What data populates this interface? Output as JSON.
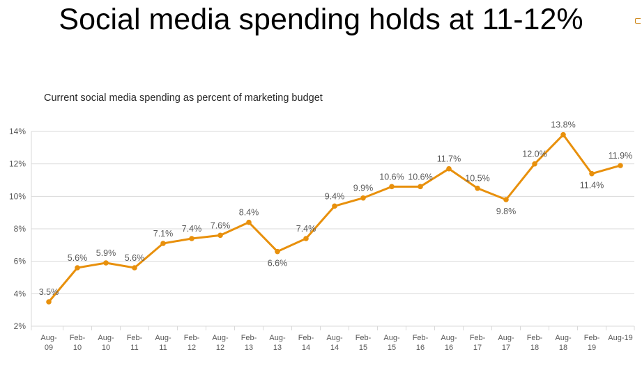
{
  "title": "Social media spending holds at 11-12%",
  "chart_data": {
    "type": "line",
    "title": "Social media spending holds at 11-12%",
    "subtitle": "Current social media spending as percent of marketing budget",
    "xlabel": "",
    "ylabel": "",
    "categories": [
      [
        "Aug-",
        "09"
      ],
      [
        "Feb-",
        "10"
      ],
      [
        "Aug-",
        "10"
      ],
      [
        "Feb-",
        "11"
      ],
      [
        "Aug-",
        "11"
      ],
      [
        "Feb-",
        "12"
      ],
      [
        "Aug-",
        "12"
      ],
      [
        "Feb-",
        "13"
      ],
      [
        "Aug-",
        "13"
      ],
      [
        "Feb-",
        "14"
      ],
      [
        "Aug-",
        "14"
      ],
      [
        "Feb-",
        "15"
      ],
      [
        "Aug-",
        "15"
      ],
      [
        "Feb-",
        "16"
      ],
      [
        "Aug-",
        "16"
      ],
      [
        "Feb-",
        "17"
      ],
      [
        "Aug-",
        "17"
      ],
      [
        "Feb-",
        "18"
      ],
      [
        "Aug-",
        "18"
      ],
      [
        "Feb-",
        "19"
      ],
      [
        "Aug-19"
      ]
    ],
    "values": [
      3.5,
      5.6,
      5.9,
      5.6,
      7.1,
      7.4,
      7.6,
      8.4,
      6.6,
      7.4,
      9.4,
      9.9,
      10.6,
      10.6,
      11.7,
      10.5,
      9.8,
      12.0,
      13.8,
      11.4,
      11.9
    ],
    "data_labels": [
      "3.5%",
      "5.6%",
      "5.9%",
      "5.6%",
      "7.1%",
      "7.4%",
      "7.6%",
      "8.4%",
      "6.6%",
      "7.4%",
      "9.4%",
      "9.9%",
      "10.6%",
      "10.6%",
      "11.7%",
      "10.5%",
      "9.8%",
      "12.0%",
      "13.8%",
      "11.4%",
      "11.9%"
    ],
    "label_below": [
      false,
      false,
      false,
      false,
      false,
      false,
      false,
      false,
      true,
      false,
      false,
      false,
      false,
      false,
      false,
      false,
      true,
      false,
      false,
      true,
      false
    ],
    "ylim": [
      2,
      14
    ],
    "yticks": [
      2,
      4,
      6,
      8,
      10,
      12,
      14
    ],
    "ytick_labels": [
      "2%",
      "4%",
      "6%",
      "8%",
      "10%",
      "12%",
      "14%"
    ],
    "grid": true,
    "legend": "none",
    "color": "#E8900C"
  }
}
